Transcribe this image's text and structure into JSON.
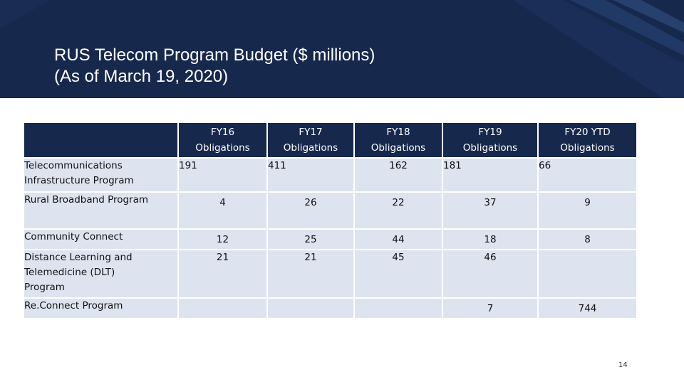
{
  "slide": {
    "title_line1": "RUS Telecom Program Budget ($ millions)",
    "title_line2": "(As of March 19, 2020)",
    "page_number": "14"
  },
  "table": {
    "headers": [
      {
        "line1": "FY16",
        "line2": "Obligations"
      },
      {
        "line1": "FY17",
        "line2": "Obligations"
      },
      {
        "line1": "FY18",
        "line2": "Obligations"
      },
      {
        "line1": "FY19",
        "line2": "Obligations"
      },
      {
        "line1": "FY20 YTD",
        "line2": "Obligations"
      }
    ],
    "rows": [
      {
        "label_line1": "Telecommunications",
        "label_line2": "Infrastructure Program",
        "label_line3": "",
        "values": [
          "191",
          "411",
          "162",
          "181",
          "66"
        ]
      },
      {
        "label_line1": "Rural Broadband Program",
        "label_line2": "",
        "label_line3": "",
        "values": [
          "4",
          "26",
          "22",
          "37",
          "9"
        ]
      },
      {
        "label_line1": "Community Connect",
        "label_line2": "",
        "label_line3": "",
        "values": [
          "12",
          "25",
          "44",
          "18",
          "8"
        ]
      },
      {
        "label_line1": "Distance Learning and",
        "label_line2": "Telemedicine (DLT)",
        "label_line3": "Program",
        "values": [
          "21",
          "21",
          "45",
          "46",
          ""
        ]
      },
      {
        "label_line1": "Re.Connect Program",
        "label_line2": "",
        "label_line3": "",
        "values": [
          "",
          "",
          "",
          "7",
          "744"
        ]
      }
    ]
  },
  "colors": {
    "header_bg": "#17284d",
    "cell_bg": "#dde3ef",
    "accent_stripes": "#2a4372"
  }
}
